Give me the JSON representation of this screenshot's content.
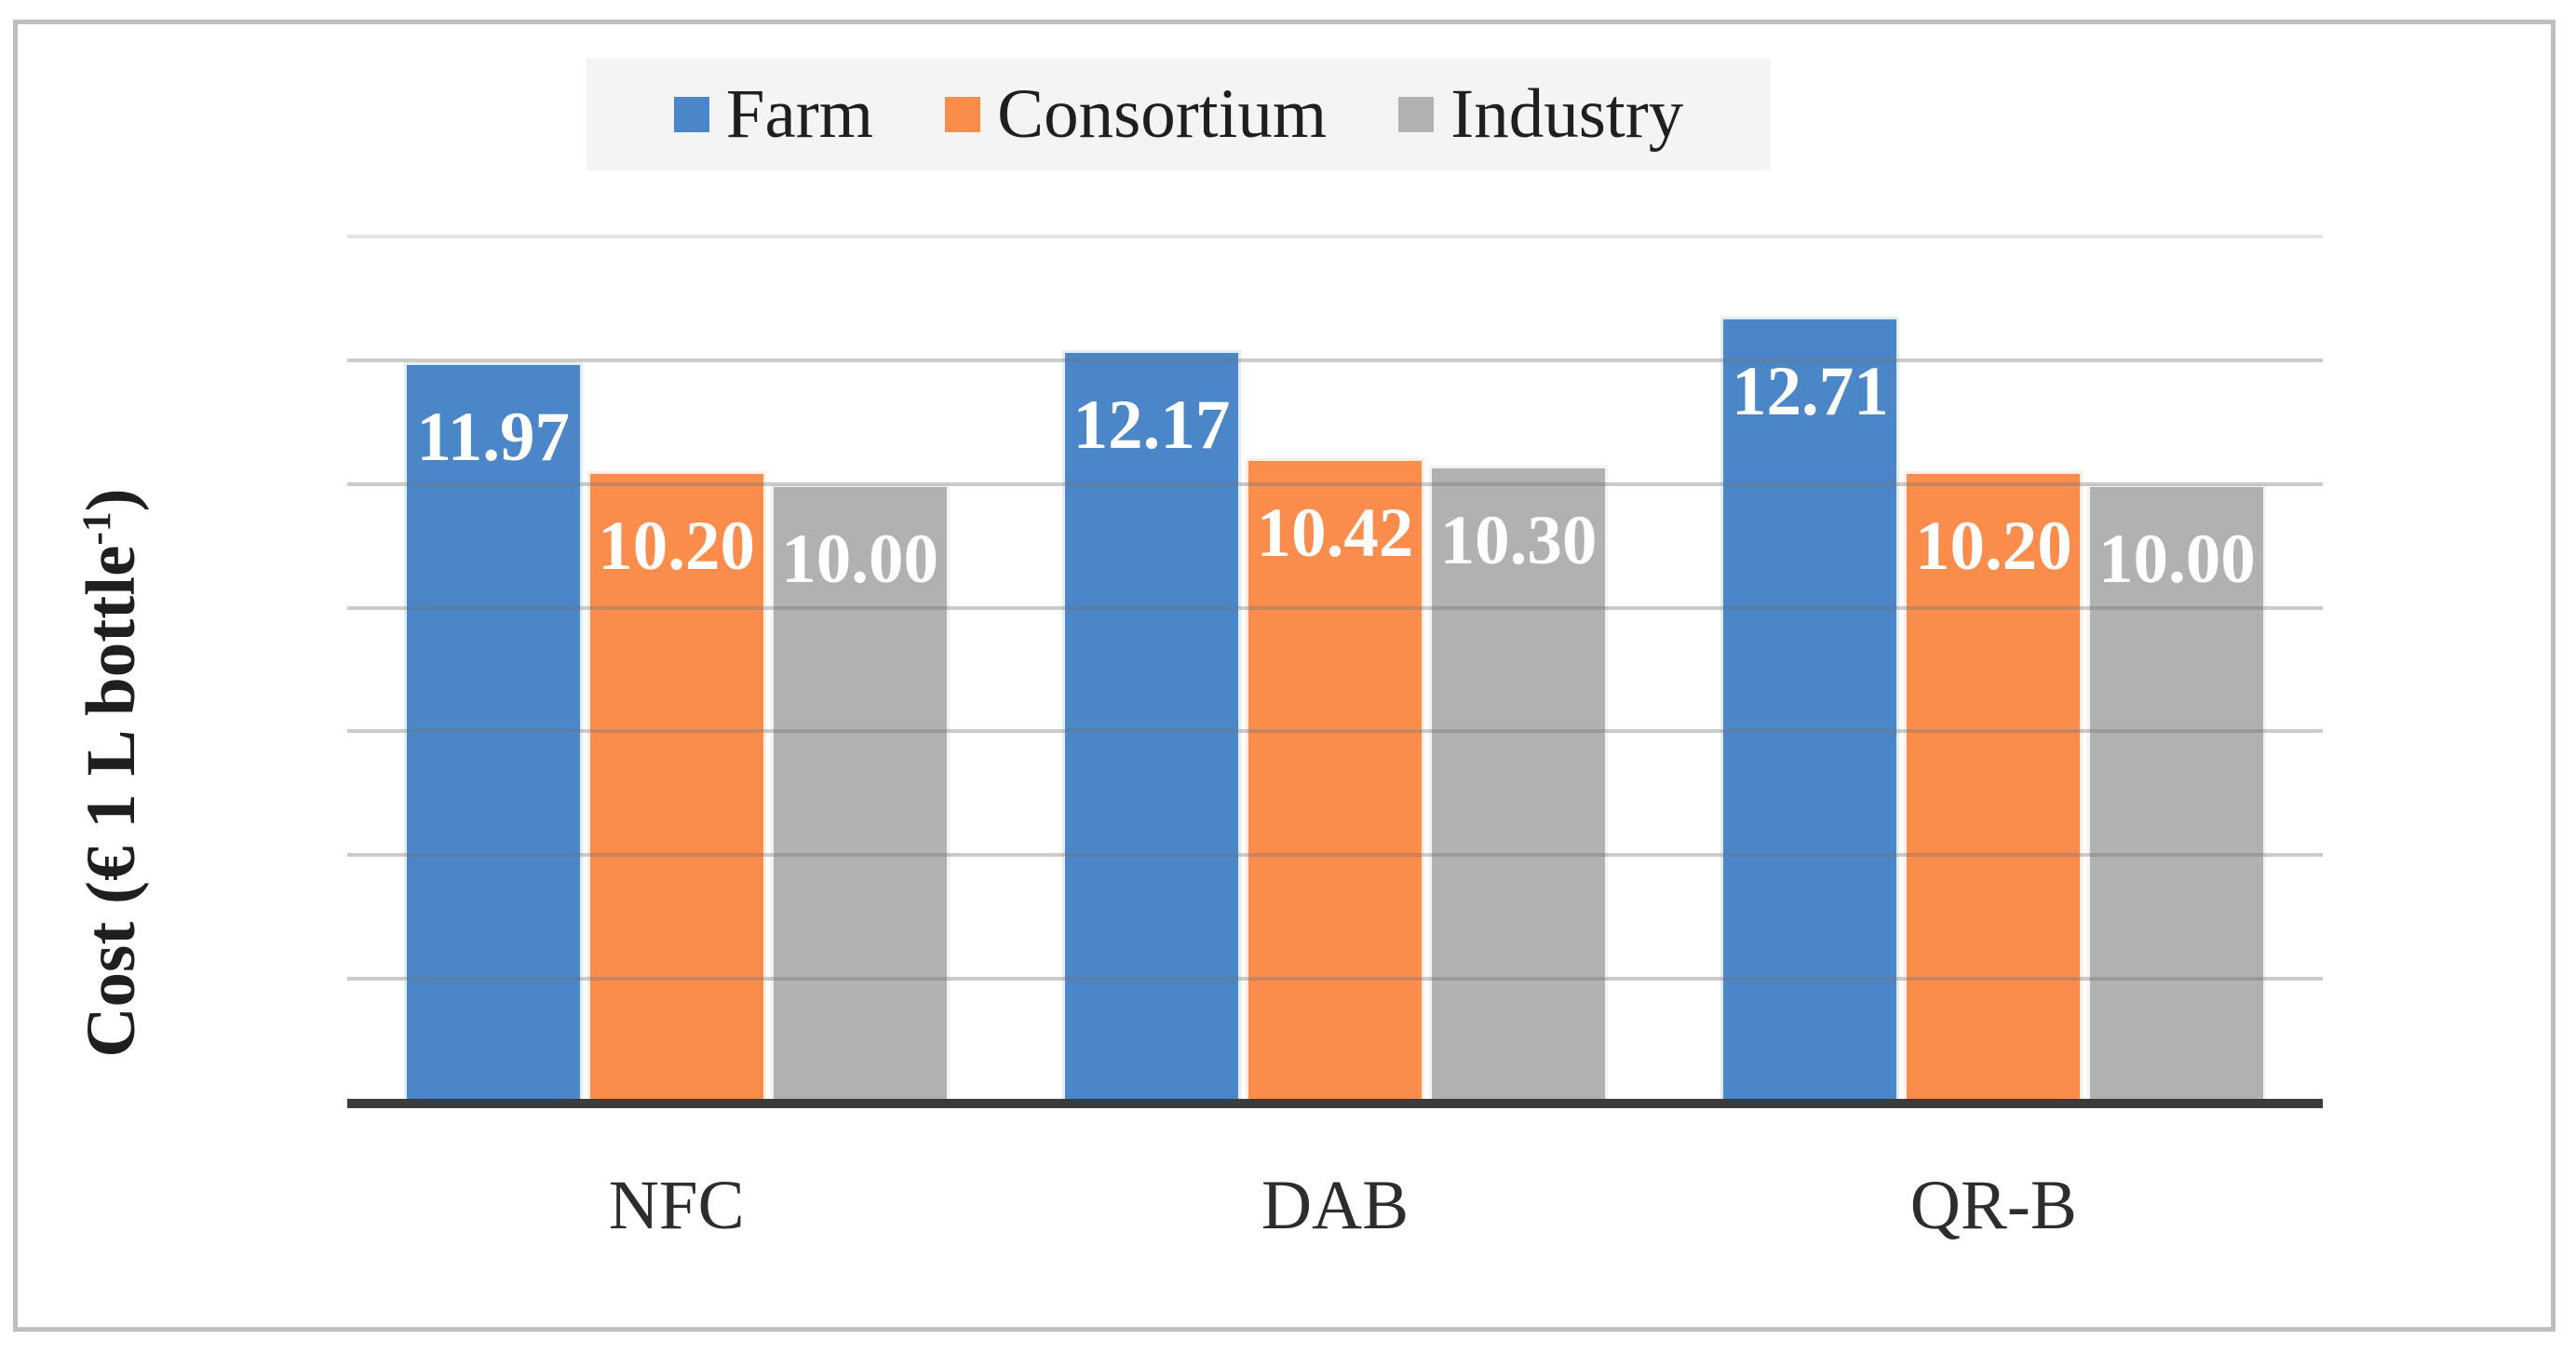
{
  "frame": {
    "border_color": "#bfbfbf",
    "background": "#ffffff"
  },
  "legend": {
    "background": "#f4f4f4",
    "items": [
      {
        "label": "Farm",
        "color": "#4a86c8"
      },
      {
        "label": "Consortium",
        "color": "#fb8d4c"
      },
      {
        "label": "Industry",
        "color": "#b1b1b1"
      }
    ]
  },
  "y_axis": {
    "label_prefix": "Cost (€ 1 L bottle",
    "label_sup": "-1",
    "label_suffix": ")"
  },
  "chart_data": {
    "type": "bar",
    "title": "",
    "xlabel": "",
    "ylabel": "Cost (€ 1 L bottle^-1)",
    "categories": [
      "NFC",
      "DAB",
      "QR-B"
    ],
    "series": [
      {
        "name": "Farm",
        "color": "#4a86c8",
        "values": [
          11.97,
          12.17,
          12.71
        ],
        "labels": [
          "11.97",
          "12.17",
          "12.71"
        ]
      },
      {
        "name": "Consortium",
        "color": "#fb8d4c",
        "values": [
          10.2,
          10.42,
          10.2
        ],
        "labels": [
          "10.20",
          "10.42",
          "10.20"
        ]
      },
      {
        "name": "Industry",
        "color": "#b1b1b1",
        "values": [
          10.0,
          10.3,
          10.0
        ],
        "labels": [
          "10.00",
          "10.30",
          "10.00"
        ]
      }
    ],
    "ylim": [
      0,
      14
    ],
    "gridline_step": 2,
    "grid": true,
    "y_tick_labels_visible": false,
    "legend_position": "top",
    "axis_line_color": "#3b3b3b",
    "gridline_color": "#c6c6c6",
    "data_label_color": "#ffffff"
  }
}
